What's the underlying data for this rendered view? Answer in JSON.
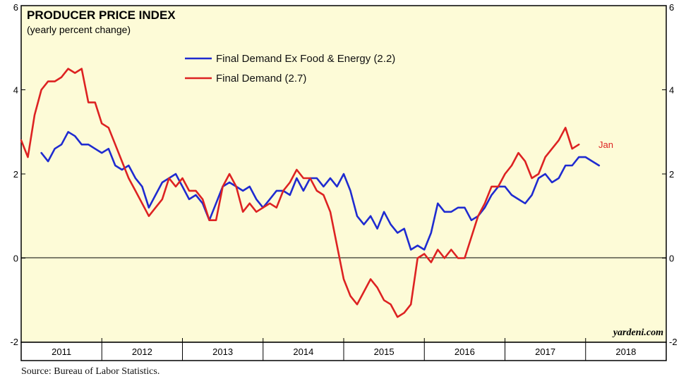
{
  "chart_data": {
    "type": "line",
    "title": "PRODUCER PRICE INDEX",
    "subtitle": "(yearly percent change)",
    "watermark": "yardeni.com",
    "source": "Source: Bureau of Labor Statistics.",
    "ylim": [
      -2,
      6
    ],
    "yticks": [
      -2,
      0,
      2,
      4,
      6
    ],
    "ytick_labels_left": [
      "-2",
      "0",
      "2",
      "4",
      "6"
    ],
    "ytick_labels_right": [
      "-2",
      "0",
      "2",
      "4",
      "6"
    ],
    "xlim": [
      2011.0,
      2019.0
    ],
    "x_categories": [
      "2011",
      "2012",
      "2013",
      "2014",
      "2015",
      "2016",
      "2017",
      "2018"
    ],
    "grid": false,
    "legend_position": "top-center",
    "annotation": {
      "text": "Jan",
      "color": "#dd2222"
    },
    "colors": {
      "background": "#fdfbd7",
      "frame": "#000000",
      "zero_line": "#000000"
    },
    "series": [
      {
        "name": "Final Demand Ex Food & Energy (2.2)",
        "color": "#1f2bd0",
        "start": 2011.25,
        "step": 0.0833333,
        "values": [
          2.5,
          2.3,
          2.6,
          2.7,
          3.0,
          2.9,
          2.7,
          2.7,
          2.6,
          2.5,
          2.6,
          2.2,
          2.1,
          2.2,
          1.9,
          1.7,
          1.2,
          1.5,
          1.8,
          1.9,
          2.0,
          1.7,
          1.4,
          1.5,
          1.3,
          0.9,
          1.3,
          1.7,
          1.8,
          1.7,
          1.6,
          1.7,
          1.4,
          1.2,
          1.4,
          1.6,
          1.6,
          1.5,
          1.9,
          1.6,
          1.9,
          1.9,
          1.7,
          1.9,
          1.7,
          2.0,
          1.6,
          1.0,
          0.8,
          1.0,
          0.7,
          1.1,
          0.8,
          0.6,
          0.7,
          0.2,
          0.3,
          0.2,
          0.6,
          1.3,
          1.1,
          1.1,
          1.2,
          1.2,
          0.9,
          1.0,
          1.2,
          1.5,
          1.7,
          1.7,
          1.5,
          1.4,
          1.3,
          1.5,
          1.9,
          2.0,
          1.8,
          1.9,
          2.2,
          2.2,
          2.4,
          2.4,
          2.3,
          2.2
        ]
      },
      {
        "name": "Final Demand (2.7)",
        "color": "#dd2222",
        "start": 2011.0,
        "step": 0.0833333,
        "values": [
          2.8,
          2.4,
          3.4,
          4.0,
          4.2,
          4.2,
          4.3,
          4.5,
          4.4,
          4.5,
          3.7,
          3.7,
          3.2,
          3.1,
          2.7,
          2.3,
          1.9,
          1.6,
          1.3,
          1.0,
          1.2,
          1.4,
          1.9,
          1.7,
          1.9,
          1.6,
          1.6,
          1.4,
          0.9,
          0.9,
          1.7,
          2.0,
          1.7,
          1.1,
          1.3,
          1.1,
          1.2,
          1.3,
          1.2,
          1.6,
          1.8,
          2.1,
          1.9,
          1.9,
          1.6,
          1.5,
          1.1,
          0.3,
          -0.5,
          -0.9,
          -1.1,
          -0.8,
          -0.5,
          -0.7,
          -1.0,
          -1.1,
          -1.4,
          -1.3,
          -1.1,
          0.0,
          0.1,
          -0.1,
          0.2,
          0.0,
          0.2,
          0.0,
          0.0,
          0.5,
          1.0,
          1.3,
          1.7,
          1.7,
          2.0,
          2.2,
          2.5,
          2.3,
          1.9,
          2.0,
          2.4,
          2.6,
          2.8,
          3.1,
          2.6,
          2.7
        ]
      }
    ]
  }
}
